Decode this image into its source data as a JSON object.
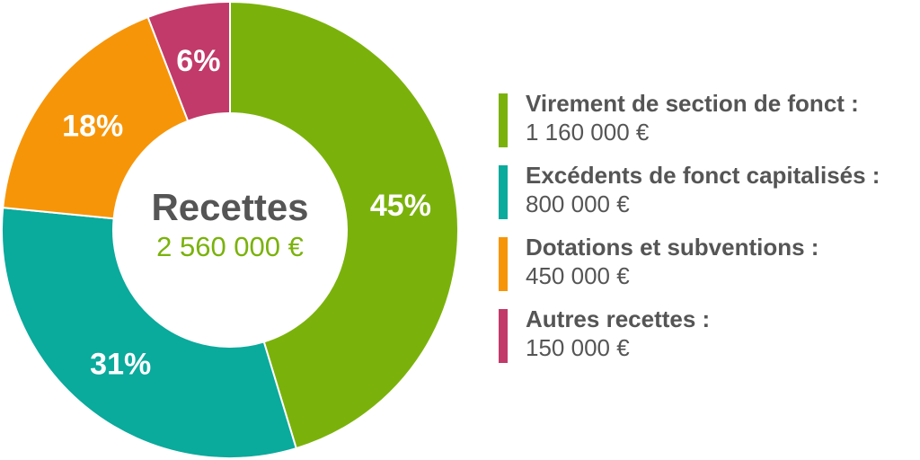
{
  "chart_data": {
    "type": "pie",
    "center": {
      "title": "Recettes",
      "total": "2 560 000 €"
    },
    "slices": [
      {
        "legend_label": "Virement de section de fonct :",
        "value": 1160000,
        "value_label": "1 160 000 €",
        "percent_label": "45%",
        "color": "#7ab20b"
      },
      {
        "legend_label": "Excédents de fonct capitalisés :",
        "value": 800000,
        "value_label": "800 000 €",
        "percent_label": "31%",
        "color": "#0aaa9c"
      },
      {
        "legend_label": "Dotations et subventions :",
        "value": 450000,
        "value_label": "450 000 €",
        "percent_label": "18%",
        "color": "#f79508"
      },
      {
        "legend_label": "Autres recettes :",
        "value": 150000,
        "value_label": "150 000 €",
        "percent_label": "6%",
        "color": "#c23a69"
      }
    ],
    "legend_position": "right"
  }
}
